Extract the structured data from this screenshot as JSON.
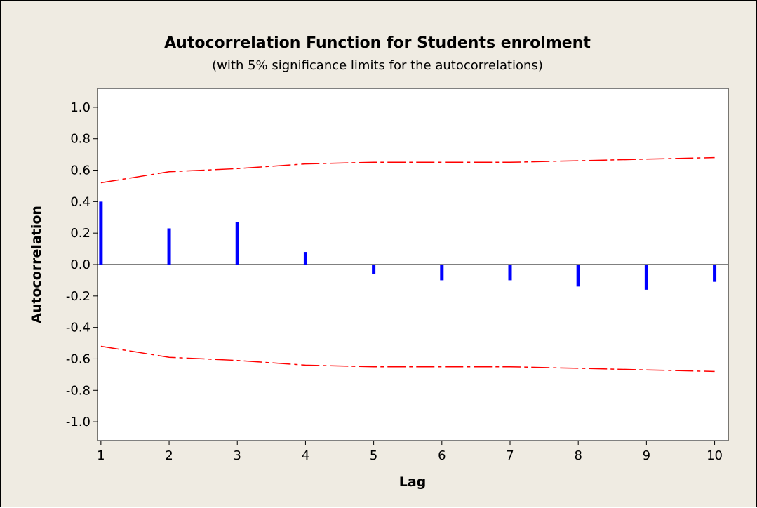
{
  "chart_data": {
    "type": "bar",
    "title": "Autocorrelation Function for Students enrolment",
    "subtitle": "(with 5% significance limits for the autocorrelations)",
    "xlabel": "Lag",
    "ylabel": "Autocorrelation",
    "x": [
      1,
      2,
      3,
      4,
      5,
      6,
      7,
      8,
      9,
      10
    ],
    "xlim": [
      0.95,
      10.2
    ],
    "ylim": [
      -1.12,
      1.12
    ],
    "x_ticks": [
      1,
      2,
      3,
      4,
      5,
      6,
      7,
      8,
      9,
      10
    ],
    "x_tick_labels": [
      "1",
      "2",
      "3",
      "4",
      "5",
      "6",
      "7",
      "8",
      "9",
      "10"
    ],
    "y_ticks": [
      1.0,
      0.8,
      0.6,
      0.4,
      0.2,
      0.0,
      -0.2,
      -0.4,
      -0.6,
      -0.8,
      -1.0
    ],
    "y_tick_labels": [
      "1.0",
      "0.8",
      "0.6",
      "0.4",
      "0.2",
      "0.0",
      "-0.2",
      "-0.4",
      "-0.6",
      "-0.8",
      "-1.0"
    ],
    "grid": false,
    "series": [
      {
        "values": [
          0.4,
          0.23,
          0.27,
          0.08,
          -0.06,
          -0.1,
          -0.1,
          -0.14,
          -0.16,
          -0.11
        ],
        "color": "#0000ff",
        "style": "vertical-spikes"
      },
      {
        "values": [
          0.52,
          0.59,
          0.61,
          0.64,
          0.65,
          0.65,
          0.65,
          0.66,
          0.67,
          0.68
        ],
        "color": "#ff0000",
        "style": "dash-dot",
        "role": "upper-limit"
      },
      {
        "values": [
          -0.52,
          -0.59,
          -0.61,
          -0.64,
          -0.65,
          -0.65,
          -0.65,
          -0.66,
          -0.67,
          -0.68
        ],
        "color": "#ff0000",
        "style": "dash-dot",
        "role": "lower-limit"
      }
    ],
    "zero_line_color": "#000000"
  }
}
